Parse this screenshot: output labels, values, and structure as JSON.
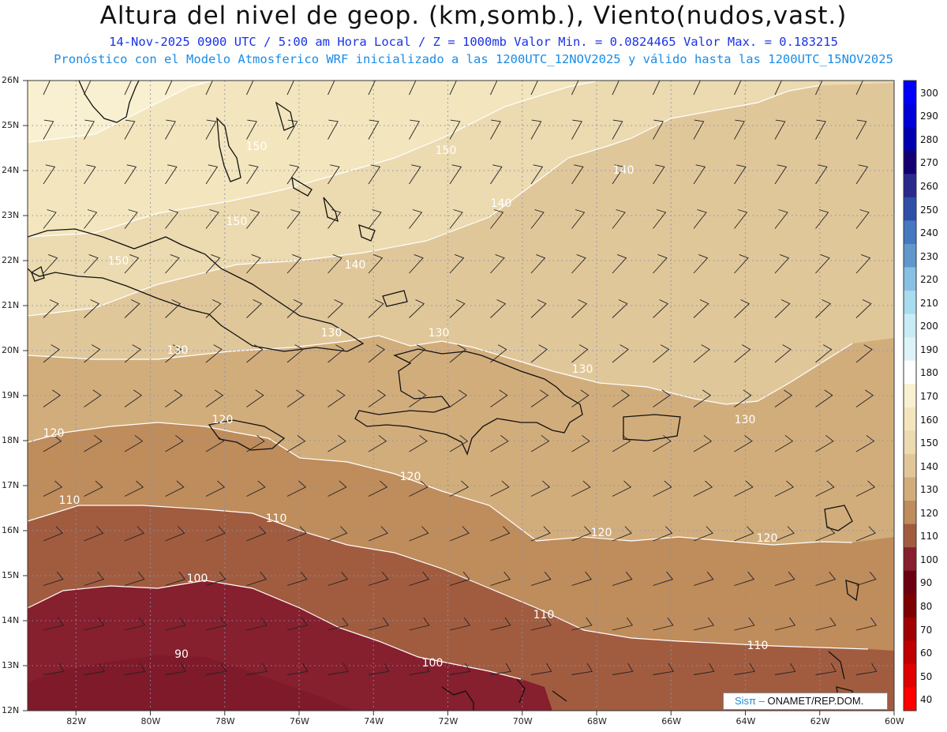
{
  "header": {
    "title": "Altura del nivel de geop. (km,somb.), Viento(nudos,vast.)",
    "subtitle_line1": "14-Nov-2025  0900 UTC / 5:00 am Hora Local / Z = 1000mb  Valor Min. = 0.0824465  Valor Max. = 0.183215",
    "subtitle_line2": "Pronóstico con el Modelo Atmosferico WRF inicializado a las 1200UTC_12NOV2025 y válido hasta las  1200UTC_15NOV2025"
  },
  "map": {
    "lat_labels": [
      "26N",
      "25N",
      "24N",
      "23N",
      "22N",
      "21N",
      "20N",
      "19N",
      "18N",
      "17N",
      "16N",
      "15N",
      "14N",
      "13N",
      "12N"
    ],
    "lon_labels": [
      "82W",
      "80W",
      "78W",
      "76W",
      "74W",
      "72W",
      "70W",
      "68W",
      "66W",
      "64W",
      "62W",
      "60W"
    ],
    "contour_labels": [
      {
        "text": "150"
      },
      {
        "text": "150"
      },
      {
        "text": "150"
      },
      {
        "text": "150"
      },
      {
        "text": "140"
      },
      {
        "text": "140"
      },
      {
        "text": "140"
      },
      {
        "text": "130"
      },
      {
        "text": "130"
      },
      {
        "text": "130"
      },
      {
        "text": "130"
      },
      {
        "text": "130"
      },
      {
        "text": "120"
      },
      {
        "text": "120"
      },
      {
        "text": "120"
      },
      {
        "text": "120"
      },
      {
        "text": "120"
      },
      {
        "text": "110"
      },
      {
        "text": "110"
      },
      {
        "text": "110"
      },
      {
        "text": "110"
      },
      {
        "text": "100"
      },
      {
        "text": "100"
      },
      {
        "text": "90"
      }
    ],
    "shading_colors": {
      "lvl160": "#f8f0d0",
      "lvl150": "#f3e6be",
      "lvl140": "#ecdab0",
      "lvl130": "#e0c79a",
      "lvl120": "#d2ad7c",
      "lvl110": "#bf8c5c",
      "lvl100": "#a15c40",
      "lvl90": "#861f2e"
    }
  },
  "colorbar": {
    "labels": [
      "300",
      "290",
      "280",
      "270",
      "260",
      "250",
      "240",
      "230",
      "220",
      "210",
      "200",
      "190",
      "180",
      "170",
      "160",
      "150",
      "140",
      "130",
      "120",
      "110",
      "100",
      "90",
      "80",
      "70",
      "60",
      "50",
      "40"
    ],
    "colors": [
      "#0000ff",
      "#0000d8",
      "#0000b0",
      "#140070",
      "#2a2a8a",
      "#3050a8",
      "#4578be",
      "#6098cc",
      "#88c0e4",
      "#a8dcee",
      "#c8ecf4",
      "#dcf4f8",
      "#ffffff",
      "#f8f0d0",
      "#f3e6be",
      "#ecdab0",
      "#e0c79a",
      "#d2ad7c",
      "#bf8c5c",
      "#a15c40",
      "#861f2e",
      "#6a0010",
      "#7c0000",
      "#a00000",
      "#c00000",
      "#e00000",
      "#ff0000"
    ]
  },
  "credit": {
    "brand": "Sisπ –",
    "text": " ONAMET/REP.DOM."
  }
}
